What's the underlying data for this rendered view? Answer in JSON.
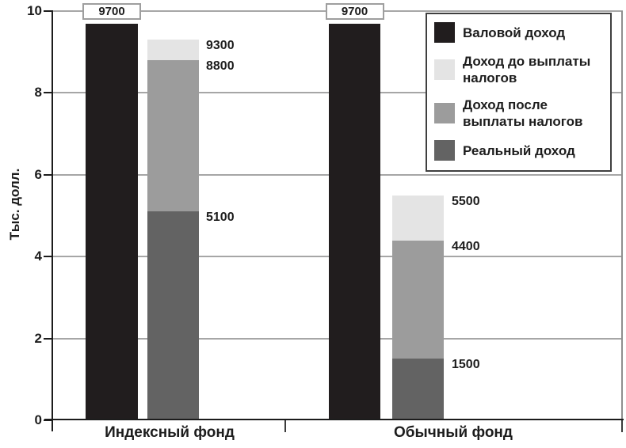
{
  "chart_data": {
    "type": "bar",
    "title": "",
    "ylabel": "Тыс. долл.",
    "ylim": [
      0,
      10
    ],
    "yticks": [
      0,
      2,
      4,
      6,
      8,
      10
    ],
    "grid": true,
    "legend_position": "top-right",
    "categories": [
      "Индексный фонд",
      "Обычный фонд"
    ],
    "series": [
      {
        "name": "Валовой доход",
        "color": "#211d1e",
        "style": "separate-bar",
        "values": [
          9700,
          9700
        ],
        "label_style": "callout-box"
      },
      {
        "name": "Доход до выплаты налогов",
        "color": "#e4e4e4",
        "style": "stacked",
        "values": [
          9300,
          5500
        ]
      },
      {
        "name": "Доход после выплаты налогов",
        "color": "#9c9c9c",
        "style": "stacked",
        "values": [
          8800,
          4400
        ]
      },
      {
        "name": "Реальный доход",
        "color": "#636363",
        "style": "stacked",
        "values": [
          5100,
          1500
        ]
      }
    ]
  },
  "legend": {
    "items": [
      {
        "label": "Валовой доход",
        "color": "#211d1e"
      },
      {
        "label": "Доход до выплаты налогов",
        "color": "#e4e4e4"
      },
      {
        "label": "Доход после выплаты налогов",
        "color": "#9c9c9c"
      },
      {
        "label": "Реальный доход",
        "color": "#636363"
      }
    ]
  },
  "colors": {
    "background": "#ffffff",
    "gridline": "#a6a6a6",
    "axis": "#1c1c1c",
    "plot_right_border": "#8f8f8f",
    "callout_border": "#9e9e9e",
    "legend_border": "#3f3f3f"
  }
}
